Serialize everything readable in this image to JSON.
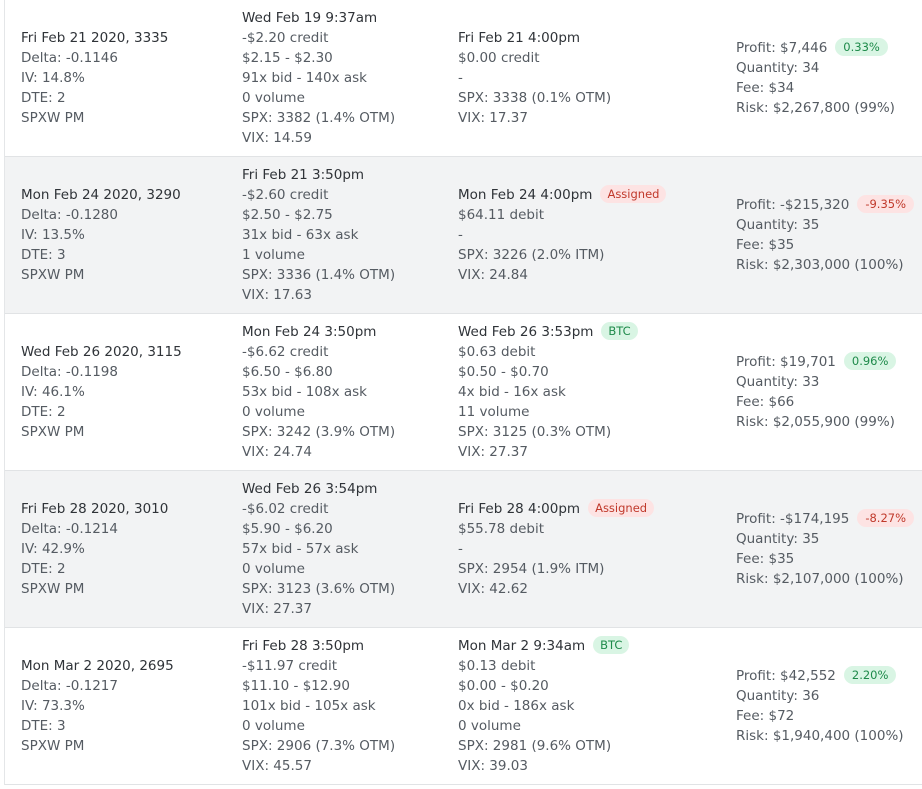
{
  "trades": [
    {
      "expiry": {
        "title": "Fri Feb 21 2020, 3335",
        "delta": "Delta: -0.1146",
        "iv": "IV: 14.8%",
        "dte": "DTE: 2",
        "symbol": "SPXW PM"
      },
      "open": {
        "time": "Wed Feb 19 9:37am",
        "credit": "-$2.20 credit",
        "bidask": "$2.15 - $2.30",
        "size": "91x bid - 140x ask",
        "volume": "0 volume",
        "spx": "SPX: 3382 (1.4% OTM)",
        "vix": "VIX: 14.59"
      },
      "close": {
        "time": "Fri Feb 21 4:00pm",
        "badge": "",
        "badge_color": "",
        "price": "$0.00 credit",
        "bidask": "-",
        "size": "",
        "volume": "",
        "spx": "SPX: 3338 (0.1% OTM)",
        "vix": "VIX: 17.37"
      },
      "result": {
        "profit": "Profit: $7,446",
        "pct": "0.33%",
        "pct_sign": "pos",
        "quantity": "Quantity: 34",
        "fee": "Fee: $34",
        "risk": "Risk: $2,267,800 (99%)"
      }
    },
    {
      "expiry": {
        "title": "Mon Feb 24 2020, 3290",
        "delta": "Delta: -0.1280",
        "iv": "IV: 13.5%",
        "dte": "DTE: 3",
        "symbol": "SPXW PM"
      },
      "open": {
        "time": "Fri Feb 21 3:50pm",
        "credit": "-$2.60 credit",
        "bidask": "$2.50 - $2.75",
        "size": "31x bid - 63x ask",
        "volume": "1 volume",
        "spx": "SPX: 3336 (1.4% OTM)",
        "vix": "VIX: 17.63"
      },
      "close": {
        "time": "Mon Feb 24 4:00pm",
        "badge": "Assigned",
        "badge_color": "red",
        "price": "$64.11 debit",
        "bidask": "-",
        "size": "",
        "volume": "",
        "spx": "SPX: 3226 (2.0% ITM)",
        "vix": "VIX: 24.84"
      },
      "result": {
        "profit": "Profit: -$215,320",
        "pct": "-9.35%",
        "pct_sign": "neg",
        "quantity": "Quantity: 35",
        "fee": "Fee: $35",
        "risk": "Risk: $2,303,000 (100%)"
      }
    },
    {
      "expiry": {
        "title": "Wed Feb 26 2020, 3115",
        "delta": "Delta: -0.1198",
        "iv": "IV: 46.1%",
        "dte": "DTE: 2",
        "symbol": "SPXW PM"
      },
      "open": {
        "time": "Mon Feb 24 3:50pm",
        "credit": "-$6.62 credit",
        "bidask": "$6.50 - $6.80",
        "size": "53x bid - 108x ask",
        "volume": "0 volume",
        "spx": "SPX: 3242 (3.9% OTM)",
        "vix": "VIX: 24.74"
      },
      "close": {
        "time": "Wed Feb 26 3:53pm",
        "badge": "BTC",
        "badge_color": "green",
        "price": "$0.63 debit",
        "bidask": "$0.50 - $0.70",
        "size": "4x bid - 16x ask",
        "volume": "11 volume",
        "spx": "SPX: 3125 (0.3% OTM)",
        "vix": "VIX: 27.37"
      },
      "result": {
        "profit": "Profit: $19,701",
        "pct": "0.96%",
        "pct_sign": "pos",
        "quantity": "Quantity: 33",
        "fee": "Fee: $66",
        "risk": "Risk: $2,055,900 (99%)"
      }
    },
    {
      "expiry": {
        "title": "Fri Feb 28 2020, 3010",
        "delta": "Delta: -0.1214",
        "iv": "IV: 42.9%",
        "dte": "DTE: 2",
        "symbol": "SPXW PM"
      },
      "open": {
        "time": "Wed Feb 26 3:54pm",
        "credit": "-$6.02 credit",
        "bidask": "$5.90 - $6.20",
        "size": "57x bid - 57x ask",
        "volume": "0 volume",
        "spx": "SPX: 3123 (3.6% OTM)",
        "vix": "VIX: 27.37"
      },
      "close": {
        "time": "Fri Feb 28 4:00pm",
        "badge": "Assigned",
        "badge_color": "red",
        "price": "$55.78 debit",
        "bidask": "-",
        "size": "",
        "volume": "",
        "spx": "SPX: 2954 (1.9% ITM)",
        "vix": "VIX: 42.62"
      },
      "result": {
        "profit": "Profit: -$174,195",
        "pct": "-8.27%",
        "pct_sign": "neg",
        "quantity": "Quantity: 35",
        "fee": "Fee: $35",
        "risk": "Risk: $2,107,000 (100%)"
      }
    },
    {
      "expiry": {
        "title": "Mon Mar 2 2020, 2695",
        "delta": "Delta: -0.1217",
        "iv": "IV: 73.3%",
        "dte": "DTE: 3",
        "symbol": "SPXW PM"
      },
      "open": {
        "time": "Fri Feb 28 3:50pm",
        "credit": "-$11.97 credit",
        "bidask": "$11.10 - $12.90",
        "size": "101x bid - 105x ask",
        "volume": "0 volume",
        "spx": "SPX: 2906 (7.3% OTM)",
        "vix": "VIX: 45.57"
      },
      "close": {
        "time": "Mon Mar 2 9:34am",
        "badge": "BTC",
        "badge_color": "green",
        "price": "$0.13 debit",
        "bidask": "$0.00 - $0.20",
        "size": "0x bid - 186x ask",
        "volume": "0 volume",
        "spx": "SPX: 2981 (9.6% OTM)",
        "vix": "VIX: 39.03"
      },
      "result": {
        "profit": "Profit: $42,552",
        "pct": "2.20%",
        "pct_sign": "pos",
        "quantity": "Quantity: 36",
        "fee": "Fee: $72",
        "risk": "Risk: $1,940,400 (100%)"
      }
    }
  ]
}
